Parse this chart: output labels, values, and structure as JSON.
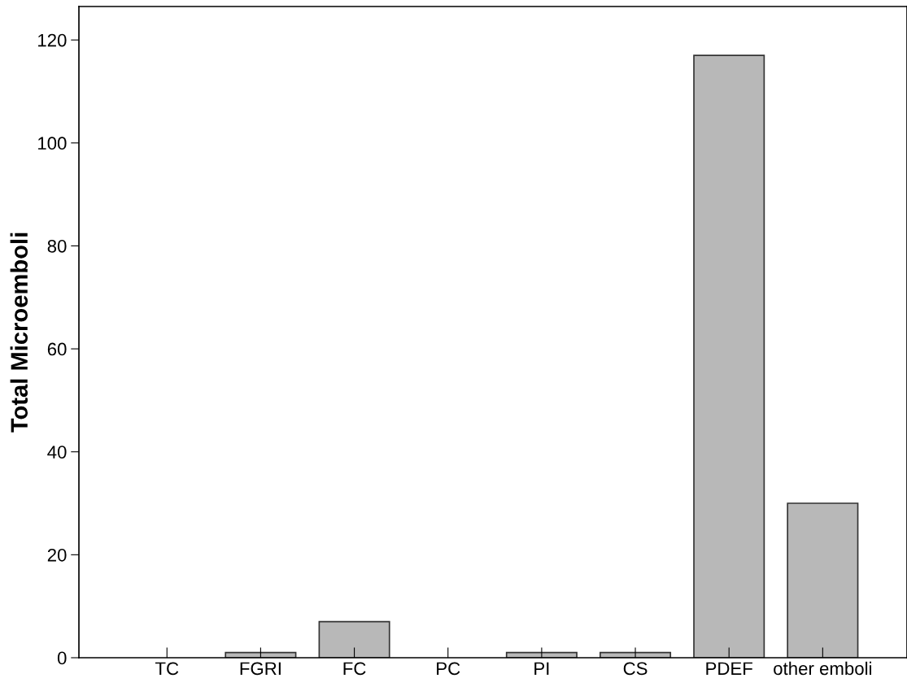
{
  "chart_data": {
    "type": "bar",
    "ylabel": "Total Microemboli",
    "categories": [
      "TC",
      "FGRI",
      "FC",
      "PC",
      "PI",
      "CS",
      "PDEF",
      "other emboli"
    ],
    "values": [
      0,
      1,
      7,
      0,
      1,
      1,
      117,
      30
    ],
    "color": "#b8b8b8",
    "ylim": [
      0,
      126.5
    ],
    "yticks": [
      0,
      20,
      40,
      60,
      80,
      100,
      120
    ],
    "grid": false
  }
}
